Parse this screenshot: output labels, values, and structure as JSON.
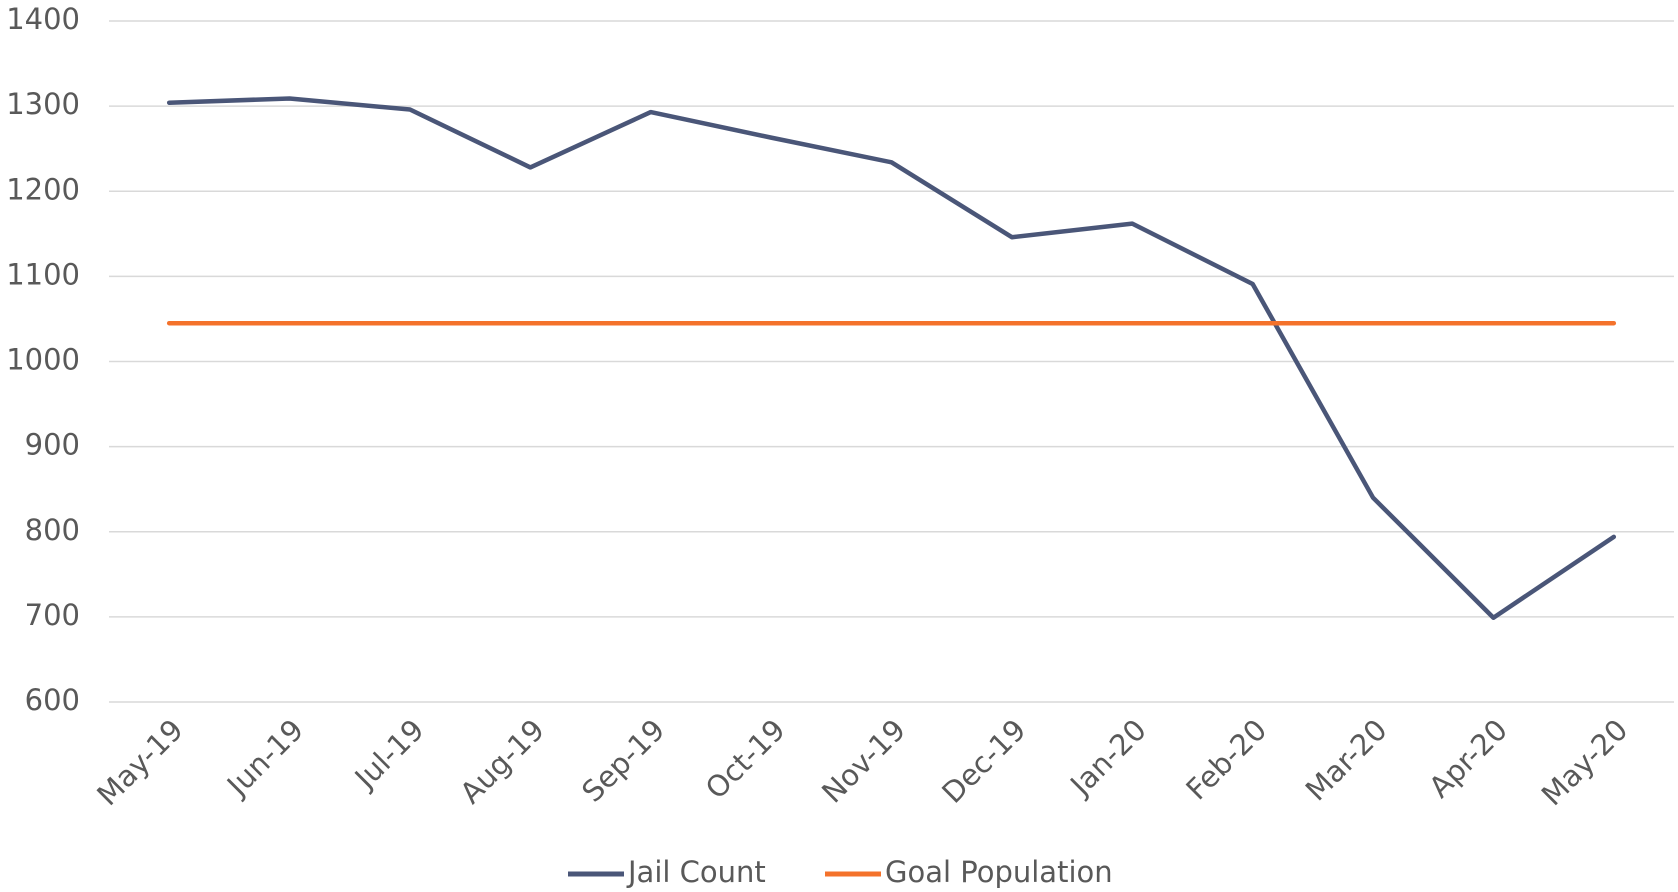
{
  "chart_data": {
    "type": "line",
    "categories": [
      "May-19",
      "Jun-19",
      "Jul-19",
      "Aug-19",
      "Sep-19",
      "Oct-19",
      "Nov-19",
      "Dec-19",
      "Jan-20",
      "Feb-20",
      "Mar-20",
      "Apr-20",
      "May-20"
    ],
    "series": [
      {
        "name": "Jail Count",
        "color": "#4a5678",
        "values": [
          1304,
          1309,
          1296,
          1228,
          1293,
          1263,
          1234,
          1146,
          1162,
          1091,
          840,
          699,
          794
        ]
      },
      {
        "name": "Goal Population",
        "color": "#f4722b",
        "values": [
          1045,
          1045,
          1045,
          1045,
          1045,
          1045,
          1045,
          1045,
          1045,
          1045,
          1045,
          1045,
          1045
        ]
      }
    ],
    "ylim": [
      600,
      1400
    ],
    "yticks": [
      600,
      700,
      800,
      900,
      1000,
      1100,
      1200,
      1300,
      1400
    ],
    "grid": true,
    "legend": "bottom"
  }
}
